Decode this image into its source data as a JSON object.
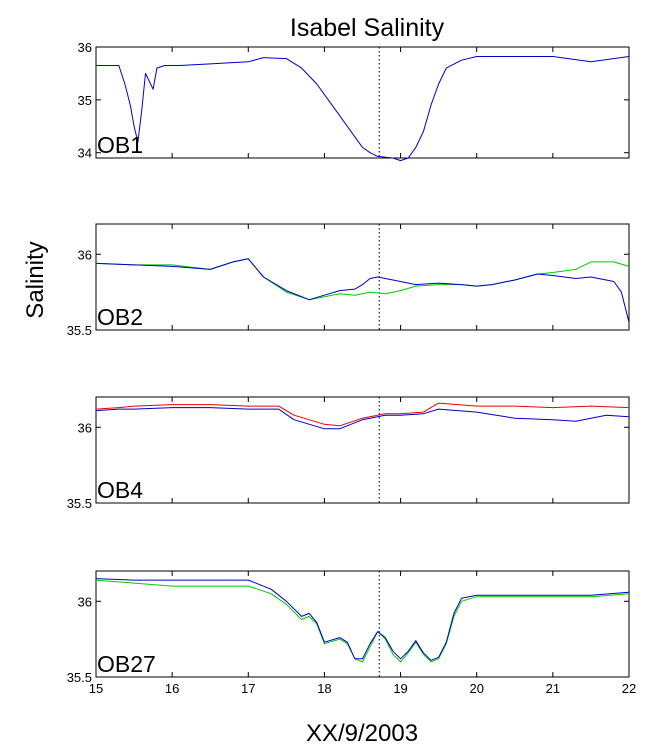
{
  "figure": {
    "title": "Isabel Salinity",
    "ylabel": "Salinity",
    "xlabel": "XX/9/2003"
  },
  "chart_data": {
    "type": "line",
    "xlim": [
      15,
      22
    ],
    "xticks": [
      15,
      16,
      17,
      18,
      19,
      20,
      21,
      22
    ],
    "marker_x": 18.72,
    "panels": [
      {
        "label": "OB1",
        "ylim": [
          33.9,
          36
        ],
        "yticks": [
          34,
          35,
          36
        ],
        "series": [
          {
            "color": "#0000cc",
            "x": [
              15.0,
              15.3,
              15.38,
              15.45,
              15.5,
              15.55,
              15.6,
              15.65,
              15.75,
              15.8,
              15.9,
              16.1,
              16.5,
              17.0,
              17.2,
              17.5,
              17.7,
              17.9,
              18.0,
              18.2,
              18.4,
              18.5,
              18.6,
              18.7,
              18.9,
              19.0,
              19.1,
              19.2,
              19.3,
              19.4,
              19.5,
              19.6,
              19.8,
              20.0,
              20.5,
              21.0,
              21.5,
              22.0
            ],
            "y": [
              35.65,
              35.65,
              35.3,
              34.9,
              34.5,
              34.2,
              34.8,
              35.5,
              35.2,
              35.6,
              35.65,
              35.65,
              35.68,
              35.72,
              35.8,
              35.78,
              35.6,
              35.3,
              35.1,
              34.7,
              34.3,
              34.1,
              34.0,
              33.93,
              33.9,
              33.85,
              33.9,
              34.1,
              34.4,
              34.9,
              35.3,
              35.6,
              35.75,
              35.82,
              35.82,
              35.82,
              35.72,
              35.82
            ]
          }
        ]
      },
      {
        "label": "OB2",
        "ylim": [
          35.5,
          36.2
        ],
        "yticks": [
          35.5,
          36
        ],
        "series": [
          {
            "color": "#00cc00",
            "x": [
              15.0,
              15.5,
              16.0,
              16.5,
              16.8,
              17.0,
              17.2,
              17.5,
              17.8,
              18.0,
              18.2,
              18.4,
              18.6,
              18.8,
              19.0,
              19.2,
              19.5,
              19.8,
              20.0,
              20.2,
              20.5,
              20.8,
              21.0,
              21.3,
              21.5,
              21.8,
              22.0
            ],
            "y": [
              35.94,
              35.93,
              35.93,
              35.9,
              35.95,
              35.97,
              35.85,
              35.75,
              35.7,
              35.72,
              35.74,
              35.73,
              35.75,
              35.74,
              35.76,
              35.79,
              35.8,
              35.8,
              35.79,
              35.8,
              35.83,
              35.87,
              35.88,
              35.9,
              35.95,
              35.95,
              35.92
            ]
          },
          {
            "color": "#0000cc",
            "x": [
              15.0,
              15.5,
              16.0,
              16.5,
              16.8,
              17.0,
              17.2,
              17.5,
              17.8,
              18.0,
              18.2,
              18.4,
              18.5,
              18.6,
              18.7,
              18.8,
              19.0,
              19.2,
              19.5,
              19.8,
              20.0,
              20.2,
              20.5,
              20.8,
              21.0,
              21.3,
              21.5,
              21.8,
              21.9,
              22.0
            ],
            "y": [
              35.94,
              35.93,
              35.92,
              35.9,
              35.95,
              35.97,
              35.85,
              35.76,
              35.7,
              35.73,
              35.76,
              35.77,
              35.8,
              35.84,
              35.85,
              35.84,
              35.82,
              35.8,
              35.81,
              35.8,
              35.79,
              35.8,
              35.83,
              35.87,
              35.86,
              35.84,
              35.85,
              35.82,
              35.75,
              35.55
            ]
          }
        ]
      },
      {
        "label": "OB4",
        "ylim": [
          35.5,
          36.2
        ],
        "yticks": [
          35.5,
          36
        ],
        "series": [
          {
            "color": "#ee0000",
            "x": [
              15.0,
              15.3,
              15.5,
              16.0,
              16.5,
              17.0,
              17.4,
              17.6,
              18.0,
              18.2,
              18.5,
              18.8,
              19.0,
              19.3,
              19.5,
              20.0,
              20.5,
              21.0,
              21.5,
              22.0
            ],
            "y": [
              36.12,
              36.13,
              36.14,
              36.15,
              36.15,
              36.14,
              36.14,
              36.08,
              36.02,
              36.01,
              36.06,
              36.09,
              36.09,
              36.1,
              36.16,
              36.14,
              36.14,
              36.13,
              36.14,
              36.13
            ]
          },
          {
            "color": "#0000cc",
            "x": [
              15.0,
              15.3,
              15.5,
              16.0,
              16.5,
              17.0,
              17.4,
              17.6,
              18.0,
              18.2,
              18.5,
              18.8,
              19.0,
              19.3,
              19.5,
              20.0,
              20.5,
              21.0,
              21.3,
              21.5,
              21.7,
              22.0
            ],
            "y": [
              36.11,
              36.12,
              36.12,
              36.13,
              36.13,
              36.12,
              36.12,
              36.05,
              35.99,
              35.99,
              36.05,
              36.08,
              36.08,
              36.09,
              36.12,
              36.1,
              36.06,
              36.05,
              36.04,
              36.06,
              36.08,
              36.07
            ]
          }
        ]
      },
      {
        "label": "OB27",
        "ylim": [
          35.5,
          36.2
        ],
        "yticks": [
          35.5,
          36
        ],
        "series": [
          {
            "color": "#00cc00",
            "x": [
              15.0,
              15.5,
              16.0,
              16.5,
              17.0,
              17.3,
              17.5,
              17.7,
              17.8,
              17.9,
              18.0,
              18.2,
              18.3,
              18.4,
              18.5,
              18.6,
              18.7,
              18.8,
              18.9,
              19.0,
              19.1,
              19.2,
              19.3,
              19.4,
              19.5,
              19.6,
              19.7,
              19.8,
              20.0,
              20.5,
              21.0,
              21.5,
              22.0
            ],
            "y": [
              36.14,
              36.12,
              36.1,
              36.1,
              36.1,
              36.05,
              35.98,
              35.88,
              35.9,
              35.85,
              35.72,
              35.75,
              35.72,
              35.62,
              35.6,
              35.7,
              35.8,
              35.75,
              35.65,
              35.6,
              35.66,
              35.73,
              35.65,
              35.6,
              35.62,
              35.72,
              35.9,
              36.0,
              36.03,
              36.03,
              36.03,
              36.03,
              36.05
            ]
          },
          {
            "color": "#0000cc",
            "x": [
              15.0,
              15.5,
              16.0,
              16.5,
              17.0,
              17.3,
              17.5,
              17.7,
              17.8,
              17.9,
              18.0,
              18.2,
              18.3,
              18.4,
              18.5,
              18.6,
              18.7,
              18.8,
              18.9,
              19.0,
              19.1,
              19.2,
              19.3,
              19.4,
              19.5,
              19.6,
              19.7,
              19.8,
              20.0,
              20.5,
              21.0,
              21.5,
              22.0
            ],
            "y": [
              36.15,
              36.14,
              36.14,
              36.14,
              36.14,
              36.08,
              36.0,
              35.9,
              35.92,
              35.86,
              35.73,
              35.76,
              35.73,
              35.62,
              35.62,
              35.72,
              35.8,
              35.76,
              35.67,
              35.62,
              35.67,
              35.74,
              35.66,
              35.61,
              35.63,
              35.73,
              35.92,
              36.02,
              36.04,
              36.04,
              36.04,
              36.04,
              36.06
            ]
          }
        ]
      }
    ]
  }
}
